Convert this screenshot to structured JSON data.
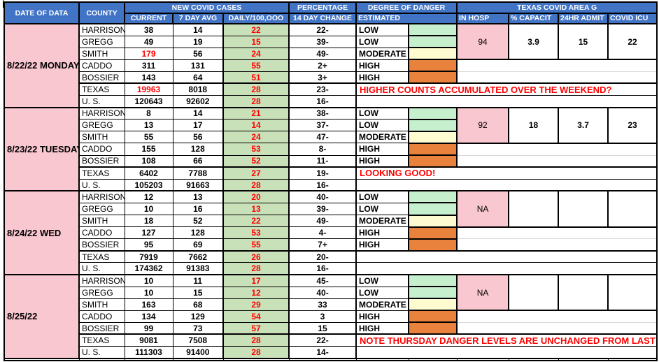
{
  "header": {
    "date_of_data": "DATE OF DATA",
    "county": "COUNTY",
    "new_covid_cases": "NEW COVID CASES",
    "current": "CURRENT",
    "seven_day_avg": "7 DAY AVG",
    "daily_per_100k": "DAILY/100,OOO",
    "percentage": "PERCENTAGE",
    "fourteen_day_change": "14 DAY CHANGE",
    "degree_of_danger": "DEGREE OF DANGER",
    "estimated": "ESTIMATED",
    "texas_covid_area_g": "TEXAS COVID AREA G",
    "in_hosp": "IN HOSP",
    "pct_capacity": "% CAPACIT",
    "admit_24hr": "24HR ADMIT",
    "covid_icu": "COVID ICU"
  },
  "colors": {
    "header_blue": "#4274C6",
    "date_pink": "#F9C7D0",
    "daily_green": "#C9E1B9",
    "danger_low_green": "#C6EFCE",
    "danger_moderate_yellow": "#FEFBD0",
    "danger_high_orange": "#E8823C",
    "alert_red": "#FF0000"
  },
  "sections": [
    {
      "date": "8/22/22 MONDAY",
      "counties": [
        {
          "name": "HARRISON",
          "current": "38",
          "avg": "14",
          "daily": "22",
          "change": "22-",
          "danger": "LOW",
          "level": "low"
        },
        {
          "name": "GREGG",
          "current": "49",
          "avg": "19",
          "daily": "15",
          "change": "39-",
          "danger": "LOW",
          "level": "low"
        },
        {
          "name": "SMITH",
          "current": "179",
          "current_red": true,
          "avg": "56",
          "daily": "24",
          "change": "49-",
          "danger": "MODERATE",
          "level": "moderate"
        },
        {
          "name": "CADDO",
          "current": "311",
          "avg": "131",
          "daily": "55",
          "change": "2+",
          "danger": "HIGH",
          "level": "high"
        },
        {
          "name": "BOSSIER",
          "current": "143",
          "avg": "64",
          "daily": "51",
          "change": "3+",
          "danger": "HIGH",
          "level": "high"
        }
      ],
      "texas": {
        "name": "TEXAS",
        "current": "19963",
        "current_red": true,
        "avg": "8018",
        "daily": "28",
        "change": "23-"
      },
      "us": {
        "name": "U. S.",
        "current": "120643",
        "avg": "92602",
        "daily": "28",
        "change": "16-"
      },
      "area_g": {
        "in_hosp": "94",
        "capacity": "3.9",
        "admit": "15",
        "icu": "22"
      },
      "comment": "HIGHER COUNTS ACCUMULATED OVER THE WEEKEND?"
    },
    {
      "date": "8/23/22 TUESDAY",
      "counties": [
        {
          "name": "HARRISON",
          "current": "8",
          "avg": "14",
          "daily": "21",
          "change": "38-",
          "danger": "LOW",
          "level": "low"
        },
        {
          "name": "GREGG",
          "current": "13",
          "avg": "17",
          "daily": "14",
          "change": "37-",
          "danger": "LOW",
          "level": "low"
        },
        {
          "name": "SMITH",
          "current": "55",
          "avg": "56",
          "daily": "24",
          "change": "47-",
          "danger": "MODERATE",
          "level": "moderate"
        },
        {
          "name": "CADDO",
          "current": "155",
          "avg": "128",
          "daily": "53",
          "change": "8-",
          "danger": "HIGH",
          "level": "high"
        },
        {
          "name": "BOSSIER",
          "current": "108",
          "avg": "66",
          "daily": "52",
          "change": "11-",
          "danger": "HIGH",
          "level": "high"
        }
      ],
      "texas": {
        "name": "TEXAS",
        "current": "6402",
        "avg": "7788",
        "daily": "27",
        "change": "19-"
      },
      "us": {
        "name": "U. S.",
        "current": "105203",
        "avg": "91663",
        "daily": "28",
        "change": "16-"
      },
      "area_g": {
        "in_hosp": "92",
        "capacity": "18",
        "admit": "3.7",
        "icu": "23"
      },
      "comment": "LOOKING GOOD!"
    },
    {
      "date": "8/24/22 WED",
      "counties": [
        {
          "name": "HARRISON",
          "current": "12",
          "avg": "13",
          "daily": "20",
          "change": "40-",
          "danger": "LOW",
          "level": "low"
        },
        {
          "name": "GREGG",
          "current": "10",
          "avg": "16",
          "daily": "13",
          "change": "39-",
          "danger": "LOW",
          "level": "low"
        },
        {
          "name": "SMITH",
          "current": "18",
          "avg": "52",
          "daily": "22",
          "change": "49-",
          "danger": "MODERATE",
          "level": "moderate"
        },
        {
          "name": "CADDO",
          "current": "127",
          "avg": "128",
          "daily": "53",
          "change": "4-",
          "danger": "HIGH",
          "level": "high"
        },
        {
          "name": "BOSSIER",
          "current": "95",
          "avg": "69",
          "daily": "55",
          "change": "7+",
          "danger": "HIGH",
          "level": "high"
        }
      ],
      "texas": {
        "name": "TEXAS",
        "current": "7919",
        "avg": "7662",
        "daily": "26",
        "change": "20-"
      },
      "us": {
        "name": "U. S.",
        "current": "174362",
        "avg": "91383",
        "daily": "28",
        "change": "16-"
      },
      "area_g": {
        "in_hosp": "NA",
        "capacity": "",
        "admit": "",
        "icu": ""
      },
      "comment": ""
    },
    {
      "date": "8/25/22",
      "counties": [
        {
          "name": "HARRISON",
          "current": "10",
          "avg": "11",
          "daily": "17",
          "change": "45-",
          "danger": "LOW",
          "level": "low"
        },
        {
          "name": "GREGG",
          "current": "10",
          "avg": "15",
          "daily": "12",
          "change": "40-",
          "danger": "LOW",
          "level": "low"
        },
        {
          "name": "SMITH",
          "current": "163",
          "avg": "68",
          "daily": "29",
          "change": "33",
          "danger": "MODERATE",
          "level": "moderate"
        },
        {
          "name": "CADDO",
          "current": "134",
          "avg": "129",
          "daily": "54",
          "change": "3",
          "danger": "HIGH",
          "level": "high"
        },
        {
          "name": "BOSSIER",
          "current": "99",
          "avg": "73",
          "daily": "57",
          "change": "15",
          "danger": "HIGH",
          "level": "high"
        }
      ],
      "texas": {
        "name": "TEXAS",
        "current": "9081",
        "avg": "7508",
        "daily": "28",
        "change": "22-"
      },
      "us": {
        "name": "U. S.",
        "current": "111303",
        "avg": "91400",
        "daily": "28",
        "change": "14-"
      },
      "area_g": {
        "in_hosp": "NA",
        "capacity": "",
        "admit": "",
        "icu": ""
      },
      "comment": "NOTE THURSDAY DANGER LEVELS ARE UNCHANGED FROM LAST WEEK"
    }
  ]
}
